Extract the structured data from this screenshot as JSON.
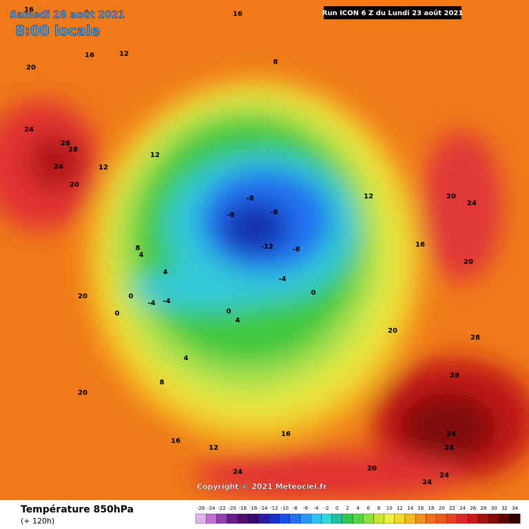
{
  "header": {
    "date": "Samedi 28 août 2021",
    "time": "8:00 locale",
    "run": "Run ICON 6 Z du Lundi 23 août 2021"
  },
  "copyright": "Copyright © 2021 Meteociel.fr",
  "footer": {
    "title": "Température 850hPa",
    "lead": "(+ 120h)"
  },
  "colorbar": {
    "ticks": [
      -26,
      -24,
      -22,
      -20,
      -18,
      -16,
      -14,
      -12,
      -10,
      -8,
      -6,
      -4,
      -2,
      0,
      2,
      4,
      6,
      8,
      10,
      12,
      14,
      16,
      18,
      20,
      22,
      24,
      26,
      28,
      30,
      32,
      34
    ]
  },
  "map": {
    "contour_labels": [
      16,
      16,
      12,
      20,
      16,
      24,
      28,
      28,
      24,
      20,
      12,
      8,
      4,
      4,
      0,
      -4,
      -8,
      -8,
      -8,
      -12,
      -8,
      -4,
      0,
      0,
      4,
      8,
      12,
      16,
      20,
      20,
      24,
      20,
      24,
      28,
      28,
      24,
      28,
      24,
      20,
      16,
      12,
      8,
      4,
      0,
      -4,
      12,
      16,
      20,
      24,
      20
    ]
  }
}
